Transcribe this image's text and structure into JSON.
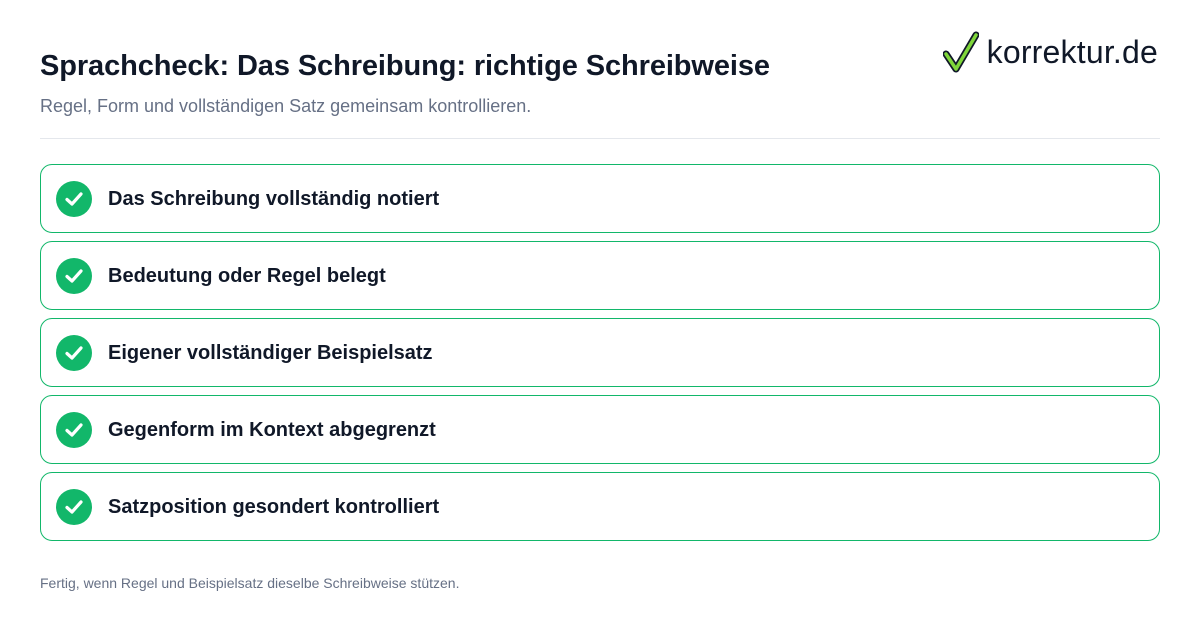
{
  "header": {
    "title": "Sprachcheck: Das Schreibung: richtige Schreibweise",
    "subtitle": "Regel, Form und vollständigen Satz gemeinsam kontrollieren."
  },
  "brand": {
    "name": "korrektur.de",
    "icon": "checkmark-logo-icon",
    "accent_color": "#7fd63a"
  },
  "checklist": {
    "accent_color": "#12b76a",
    "items": [
      {
        "label": "Das Schreibung vollständig notiert",
        "checked": true,
        "icon": "check-circle-icon"
      },
      {
        "label": "Bedeutung oder Regel belegt",
        "checked": true,
        "icon": "check-circle-icon"
      },
      {
        "label": "Eigener vollständiger Beispielsatz",
        "checked": true,
        "icon": "check-circle-icon"
      },
      {
        "label": "Gegenform im Kontext abgegrenzt",
        "checked": true,
        "icon": "check-circle-icon"
      },
      {
        "label": "Satzposition gesondert kontrolliert",
        "checked": true,
        "icon": "check-circle-icon"
      }
    ]
  },
  "footer": {
    "note": "Fertig, wenn Regel und Beispielsatz dieselbe Schreibweise stützen."
  }
}
